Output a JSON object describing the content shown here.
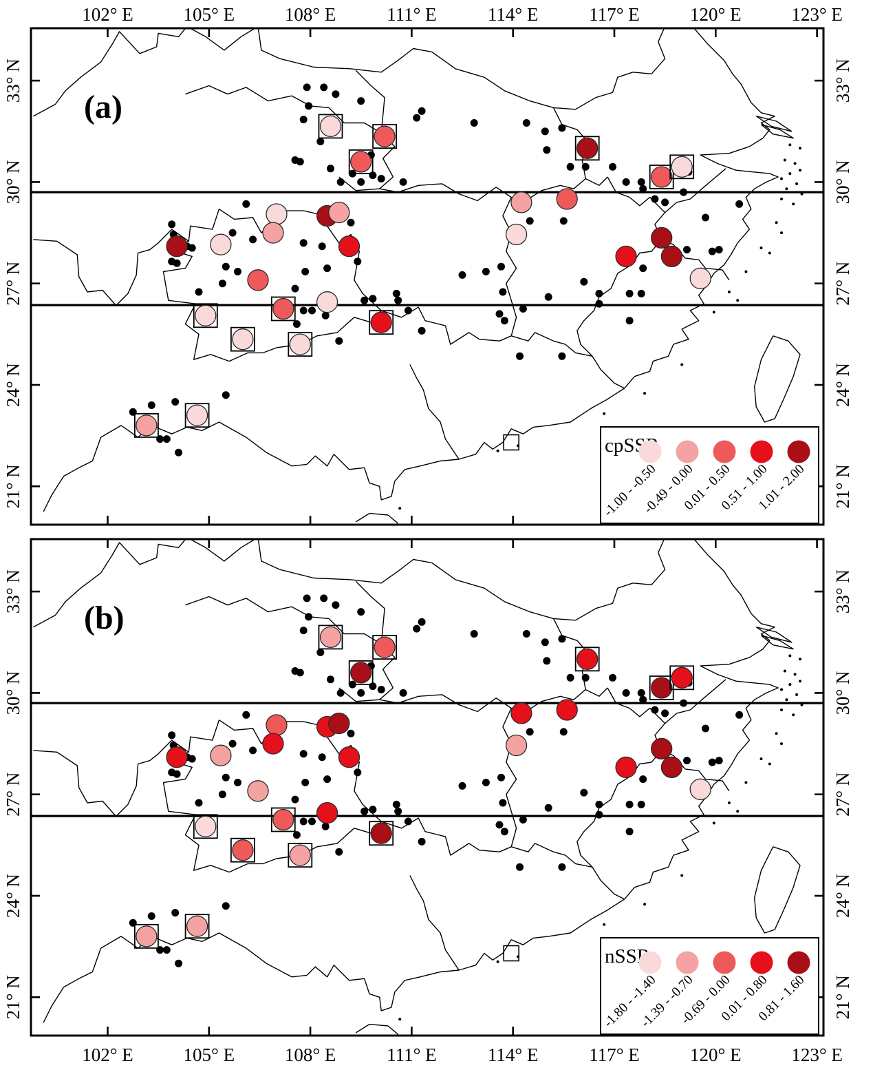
{
  "figure": {
    "panels": [
      {
        "id": "a",
        "label": "(a)",
        "legend_title": "cpSSR",
        "legend_bins": [
          {
            "label": "-1.00 - -0.50",
            "color": "#f9d9d9"
          },
          {
            "label": "-0.49 - 0.00",
            "color": "#f4a2a2"
          },
          {
            "label": "0.01 - 0.50",
            "color": "#ee5a5a"
          },
          {
            "label": "0.51 - 1.00",
            "color": "#e6101b"
          },
          {
            "label": "1.01 - 2.00",
            "color": "#a90f16"
          }
        ]
      },
      {
        "id": "b",
        "label": "(b)",
        "legend_title": "nSSR",
        "legend_bins": [
          {
            "label": "-1.80 - -1.40",
            "color": "#f9d9d9"
          },
          {
            "label": "-1.39 - -0.70",
            "color": "#f4a2a2"
          },
          {
            "label": "-0.69 - 0.00",
            "color": "#ee5a5a"
          },
          {
            "label": "0.01 - 0.80",
            "color": "#e6101b"
          },
          {
            "label": "0.81 - 1.60",
            "color": "#a90f16"
          }
        ]
      }
    ],
    "axes": {
      "lon_tick_values": [
        102,
        105,
        108,
        111,
        114,
        117,
        120,
        123
      ],
      "lon_tick_labels": [
        "102° E",
        "105° E",
        "108° E",
        "111° E",
        "114° E",
        "117° E",
        "120° E",
        "123° E"
      ],
      "lat_tick_values": [
        33,
        30,
        27,
        24,
        21
      ],
      "lat_tick_labels": [
        "33° N",
        "30° N",
        "27° N",
        "24° N",
        "21° N"
      ]
    },
    "map": {
      "lon_range": [
        99.73,
        123.19
      ],
      "lat_range": [
        19.87,
        34.55
      ],
      "range_lines_lat": [
        29.7,
        26.36
      ]
    },
    "chart_data": {
      "type": "scatter",
      "description": "Geographic distribution of populations; circle color bin = genetic value class (1=lowest..5=highest) for cpSSR (panel a) and nSSR (panel b); squared = boxed populations; dots = occurrence records",
      "bin_colors": [
        "#f9d9d9",
        "#f4a2a2",
        "#ee5a5a",
        "#e6101b",
        "#a90f16"
      ],
      "populations": [
        {
          "lon": 108.6,
          "lat": 31.65,
          "squared": true,
          "cp": 1,
          "n": 2
        },
        {
          "lon": 110.2,
          "lat": 31.35,
          "squared": true,
          "cp": 3,
          "n": 3
        },
        {
          "lon": 109.5,
          "lat": 30.6,
          "squared": true,
          "cp": 3,
          "n": 5
        },
        {
          "lon": 116.2,
          "lat": 31.0,
          "squared": true,
          "cp": 5,
          "n": 4
        },
        {
          "lon": 118.4,
          "lat": 30.15,
          "squared": true,
          "cp": 3,
          "n": 5
        },
        {
          "lon": 119.0,
          "lat": 30.45,
          "squared": true,
          "cp": 1,
          "n": 4
        },
        {
          "lon": 104.05,
          "lat": 28.1,
          "squared": false,
          "cp": 5,
          "n": 4
        },
        {
          "lon": 105.35,
          "lat": 28.15,
          "squared": false,
          "cp": 1,
          "n": 2
        },
        {
          "lon": 107.0,
          "lat": 29.05,
          "squared": false,
          "cp": 1,
          "n": 3
        },
        {
          "lon": 106.9,
          "lat": 28.5,
          "squared": false,
          "cp": 2,
          "n": 4
        },
        {
          "lon": 108.5,
          "lat": 29.0,
          "squared": false,
          "cp": 5,
          "n": 4
        },
        {
          "lon": 108.85,
          "lat": 29.1,
          "squared": false,
          "cp": 2,
          "n": 5
        },
        {
          "lon": 109.15,
          "lat": 28.1,
          "squared": false,
          "cp": 4,
          "n": 4
        },
        {
          "lon": 106.45,
          "lat": 27.1,
          "squared": false,
          "cp": 3,
          "n": 2
        },
        {
          "lon": 108.5,
          "lat": 26.45,
          "squared": false,
          "cp": 1,
          "n": 4
        },
        {
          "lon": 104.9,
          "lat": 26.05,
          "squared": true,
          "cp": 1,
          "n": 1
        },
        {
          "lon": 107.2,
          "lat": 26.25,
          "squared": true,
          "cp": 3,
          "n": 3
        },
        {
          "lon": 106.0,
          "lat": 25.35,
          "squared": true,
          "cp": 1,
          "n": 3
        },
        {
          "lon": 107.7,
          "lat": 25.2,
          "squared": true,
          "cp": 1,
          "n": 2
        },
        {
          "lon": 110.1,
          "lat": 25.85,
          "squared": true,
          "cp": 4,
          "n": 5
        },
        {
          "lon": 103.15,
          "lat": 22.8,
          "squared": true,
          "cp": 2,
          "n": 2
        },
        {
          "lon": 104.65,
          "lat": 23.1,
          "squared": true,
          "cp": 1,
          "n": 2
        },
        {
          "lon": 114.25,
          "lat": 29.4,
          "squared": false,
          "cp": 2,
          "n": 4
        },
        {
          "lon": 114.1,
          "lat": 28.45,
          "squared": false,
          "cp": 1,
          "n": 2
        },
        {
          "lon": 115.6,
          "lat": 29.5,
          "squared": false,
          "cp": 3,
          "n": 4
        },
        {
          "lon": 118.4,
          "lat": 28.35,
          "squared": false,
          "cp": 5,
          "n": 5
        },
        {
          "lon": 117.35,
          "lat": 27.8,
          "squared": false,
          "cp": 4,
          "n": 4
        },
        {
          "lon": 118.7,
          "lat": 27.8,
          "squared": false,
          "cp": 5,
          "n": 5
        },
        {
          "lon": 119.55,
          "lat": 27.15,
          "squared": false,
          "cp": 1,
          "n": 1
        }
      ],
      "special_markers": [
        {
          "type": "empty-square",
          "lon": 113.95,
          "lat": 22.3
        }
      ],
      "occurrence_dots": [
        [
          107.9,
          32.8
        ],
        [
          108.4,
          32.8
        ],
        [
          108.75,
          32.6
        ],
        [
          109.5,
          32.4
        ],
        [
          107.95,
          32.25
        ],
        [
          107.8,
          31.85
        ],
        [
          108.3,
          31.2
        ],
        [
          110.15,
          31.2
        ],
        [
          109.8,
          30.8
        ],
        [
          107.55,
          30.65
        ],
        [
          107.7,
          30.6
        ],
        [
          108.6,
          30.4
        ],
        [
          109.25,
          30.25
        ],
        [
          109.85,
          30.2
        ],
        [
          108.9,
          30.0
        ],
        [
          109.5,
          30.0
        ],
        [
          110.1,
          30.1
        ],
        [
          110.75,
          30.0
        ],
        [
          111.3,
          32.1
        ],
        [
          111.15,
          31.9
        ],
        [
          106.1,
          29.35
        ],
        [
          103.9,
          28.75
        ],
        [
          103.95,
          28.45
        ],
        [
          104.35,
          28.1
        ],
        [
          104.5,
          28.05
        ],
        [
          103.9,
          27.65
        ],
        [
          104.05,
          27.6
        ],
        [
          105.7,
          28.5
        ],
        [
          106.3,
          28.3
        ],
        [
          105.5,
          27.5
        ],
        [
          105.85,
          27.35
        ],
        [
          105.4,
          27.0
        ],
        [
          104.7,
          26.75
        ],
        [
          107.8,
          28.2
        ],
        [
          108.35,
          28.1
        ],
        [
          109.2,
          28.8
        ],
        [
          109.4,
          27.65
        ],
        [
          108.5,
          27.45
        ],
        [
          107.55,
          26.85
        ],
        [
          107.85,
          27.35
        ],
        [
          107.8,
          26.2
        ],
        [
          108.05,
          26.2
        ],
        [
          107.6,
          25.8
        ],
        [
          108.45,
          26.05
        ],
        [
          108.85,
          25.3
        ],
        [
          109.6,
          26.5
        ],
        [
          109.85,
          26.55
        ],
        [
          110.55,
          26.7
        ],
        [
          110.6,
          26.5
        ],
        [
          110.9,
          26.2
        ],
        [
          111.3,
          25.6
        ],
        [
          102.75,
          23.2
        ],
        [
          103.3,
          23.4
        ],
        [
          104.0,
          23.5
        ],
        [
          105.5,
          23.7
        ],
        [
          103.55,
          22.4
        ],
        [
          103.75,
          22.4
        ],
        [
          104.1,
          22.0
        ],
        [
          112.85,
          31.75
        ],
        [
          114.4,
          31.75
        ],
        [
          114.95,
          31.5
        ],
        [
          115.0,
          30.95
        ],
        [
          115.45,
          31.6
        ],
        [
          115.7,
          30.45
        ],
        [
          116.15,
          30.45
        ],
        [
          116.95,
          30.45
        ],
        [
          117.35,
          30.0
        ],
        [
          117.8,
          30.0
        ],
        [
          117.85,
          29.8
        ],
        [
          118.2,
          29.5
        ],
        [
          119.2,
          30.3
        ],
        [
          118.5,
          29.4
        ],
        [
          119.05,
          29.7
        ],
        [
          119.7,
          28.95
        ],
        [
          120.7,
          29.35
        ],
        [
          115.5,
          28.85
        ],
        [
          120.1,
          28.0
        ],
        [
          119.15,
          28.0
        ],
        [
          119.9,
          27.95
        ],
        [
          117.85,
          27.45
        ],
        [
          116.1,
          27.05
        ],
        [
          116.55,
          26.7
        ],
        [
          117.45,
          26.7
        ],
        [
          117.8,
          26.7
        ],
        [
          115.05,
          26.6
        ],
        [
          116.55,
          26.4
        ],
        [
          117.45,
          25.9
        ],
        [
          114.5,
          28.85
        ],
        [
          113.65,
          27.5
        ],
        [
          113.2,
          27.35
        ],
        [
          113.7,
          26.75
        ],
        [
          114.3,
          26.25
        ],
        [
          113.6,
          26.1
        ],
        [
          113.75,
          25.9
        ],
        [
          112.5,
          27.25
        ],
        [
          115.45,
          24.85
        ],
        [
          114.2,
          24.85
        ]
      ]
    }
  }
}
